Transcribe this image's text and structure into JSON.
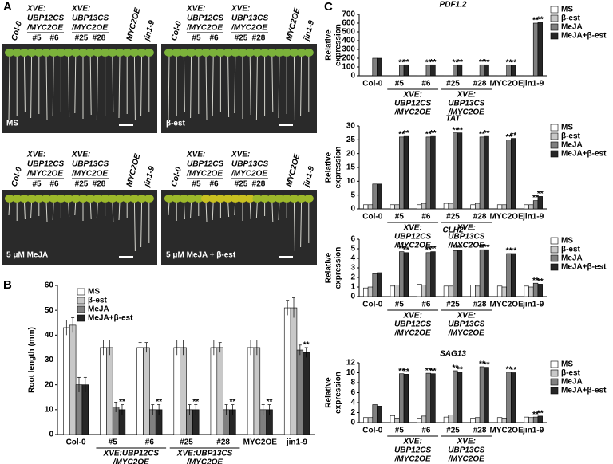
{
  "panels": [
    "A",
    "B",
    "C"
  ],
  "panel_a": {
    "conditions": [
      "MS",
      "β-est",
      "5 μM MeJA",
      "5 μM MeJA + β-est"
    ],
    "column_labels": [
      "Col-0",
      "#5",
      "#6",
      "#25",
      "#28",
      "MYC2OE",
      "jin1-9"
    ],
    "group_labels": [
      [
        "XVE:",
        "UBP12CS",
        "/MYC2OE"
      ],
      [
        "XVE:",
        "UBP13CS",
        "/MYC2OE"
      ]
    ]
  },
  "chart_data": [
    {
      "type": "bar",
      "ylabel": "Root length (mm)",
      "categories": [
        "Col-0",
        "#5",
        "#6",
        "#25",
        "#28",
        "MYC2OE",
        "jin1-9"
      ],
      "group_labels": [
        [
          "XVE:UBP12CS",
          "/MYC2OE"
        ],
        [
          "XVE:UBP13CS",
          "/MYC2OE"
        ]
      ],
      "ylim": [
        0,
        60
      ],
      "yticks": [
        0,
        10,
        20,
        30,
        40,
        50,
        60
      ],
      "series": [
        {
          "name": "MS",
          "color": "#ffffff",
          "values": [
            43,
            35,
            35,
            35,
            35,
            35,
            51
          ],
          "errors": [
            3,
            3,
            2,
            3,
            3,
            3,
            3
          ]
        },
        {
          "name": "β-est",
          "color": "#c8c8c8",
          "values": [
            44,
            35,
            35,
            35,
            35,
            35,
            51
          ],
          "errors": [
            3,
            3,
            2,
            3,
            2,
            3,
            4
          ]
        },
        {
          "name": "MeJA",
          "color": "#808080",
          "values": [
            20,
            11,
            10,
            10,
            10,
            10,
            34
          ],
          "errors": [
            3,
            2,
            2,
            2,
            2,
            2,
            2
          ]
        },
        {
          "name": "MeJA+β-est",
          "color": "#262626",
          "values": [
            20,
            10,
            10,
            10,
            10,
            10,
            33
          ],
          "errors": [
            3,
            2,
            2,
            2,
            2,
            2,
            2
          ],
          "labels": [
            null,
            "**",
            "**",
            "**",
            "**",
            "**",
            "**"
          ]
        }
      ]
    },
    {
      "type": "bar",
      "title": "PDF1.2",
      "ylabel": [
        "Relative",
        "expression"
      ],
      "categories": [
        "Col-0",
        "#5",
        "#6",
        "#25",
        "#28",
        "MYC2OE",
        "jin1-9"
      ],
      "group_labels": [
        [
          "XVE:",
          "UBP12CS",
          "/MYC2OE"
        ],
        [
          "XVE:",
          "UBP13CS",
          "/MYC2OE"
        ]
      ],
      "ylim": [
        0,
        700
      ],
      "yticks": [
        0,
        100,
        200,
        300,
        400,
        500,
        600,
        700
      ],
      "series": [
        {
          "name": "MS",
          "color": "#ffffff",
          "values": [
            1,
            1,
            1,
            1,
            1,
            1,
            1
          ]
        },
        {
          "name": "β-est",
          "color": "#c8c8c8",
          "values": [
            1,
            1,
            1,
            1,
            1,
            1,
            1
          ]
        },
        {
          "name": "MeJA",
          "color": "#808080",
          "values": [
            200,
            120,
            120,
            120,
            125,
            120,
            600
          ],
          "labels": [
            null,
            "**",
            "**",
            "**",
            "**",
            "**",
            "**"
          ]
        },
        {
          "name": "MeJA+β-est",
          "color": "#262626",
          "values": [
            200,
            125,
            125,
            125,
            125,
            120,
            610
          ],
          "labels": [
            null,
            "**",
            "**",
            "**",
            "**",
            "**",
            "**"
          ]
        }
      ]
    },
    {
      "type": "bar",
      "title": "TAT",
      "ylabel": [
        "Relative",
        "expression"
      ],
      "categories": [
        "Col-0",
        "#5",
        "#6",
        "#25",
        "#28",
        "MYC2OE",
        "jin1-9"
      ],
      "group_labels": [
        [
          "XVE:",
          "UBP12CS",
          "/MYC2OE"
        ],
        [
          "XVE:",
          "UBP13CS",
          "/MYC2OE"
        ]
      ],
      "ylim": [
        0,
        30
      ],
      "yticks": [
        0,
        5,
        10,
        15,
        20,
        25,
        30
      ],
      "series": [
        {
          "name": "MS",
          "color": "#ffffff",
          "values": [
            1.5,
            1.5,
            1.5,
            2,
            1.5,
            1.5,
            1.5
          ]
        },
        {
          "name": "β-est",
          "color": "#c8c8c8",
          "values": [
            1.5,
            1.5,
            2,
            2,
            2,
            1.5,
            1.5
          ]
        },
        {
          "name": "MeJA",
          "color": "#808080",
          "values": [
            9,
            26,
            26,
            27.5,
            26,
            25,
            3
          ],
          "labels": [
            null,
            "**",
            "**",
            "**",
            "**",
            "**",
            "**"
          ]
        },
        {
          "name": "MeJA+β-est",
          "color": "#262626",
          "values": [
            9,
            26.5,
            26.5,
            27.5,
            26.5,
            25.5,
            4.5
          ],
          "labels": [
            null,
            "**",
            "**",
            "**",
            "**",
            "**",
            "**"
          ]
        }
      ]
    },
    {
      "type": "bar",
      "title": "CLH2",
      "ylabel": [
        "Relative",
        "expression"
      ],
      "categories": [
        "Col-0",
        "#5",
        "#6",
        "#25",
        "#28",
        "MYC2OE",
        "jin1-9"
      ],
      "group_labels": [
        [
          "XVE:",
          "UBP12CS",
          "/MYC2OE"
        ],
        [
          "XVE:",
          "UBP13CS",
          "/MYC2OE"
        ]
      ],
      "ylim": [
        0,
        6
      ],
      "yticks": [
        0,
        1,
        2,
        3,
        4,
        5,
        6
      ],
      "series": [
        {
          "name": "MS",
          "color": "#ffffff",
          "values": [
            0.9,
            1.1,
            1.3,
            1.1,
            1.2,
            1.1,
            1.1
          ]
        },
        {
          "name": "β-est",
          "color": "#c8c8c8",
          "values": [
            1,
            1.2,
            1.2,
            1.1,
            1.1,
            1,
            1
          ]
        },
        {
          "name": "MeJA",
          "color": "#808080",
          "values": [
            2.4,
            4.7,
            4.6,
            4.8,
            4.9,
            4.5,
            1.4
          ],
          "labels": [
            null,
            "**",
            "**",
            "**",
            "**",
            "**",
            "**"
          ]
        },
        {
          "name": "MeJA+β-est",
          "color": "#262626",
          "values": [
            2.5,
            4.6,
            4.7,
            4.8,
            4.9,
            4.5,
            1.3
          ],
          "labels": [
            null,
            "**",
            "**",
            "**",
            "**",
            "**",
            "**"
          ]
        }
      ]
    },
    {
      "type": "bar",
      "title": "SAG13",
      "ylabel": [
        "Relative",
        "expression"
      ],
      "categories": [
        "Col-0",
        "#5",
        "#6",
        "#25",
        "#28",
        "MYC2OE",
        "jin1-9"
      ],
      "group_labels": [
        [
          "XVE:",
          "UBP12CS",
          "/MYC2OE"
        ],
        [
          "XVE:",
          "UBP13CS",
          "/MYC2OE"
        ]
      ],
      "ylim": [
        0,
        12
      ],
      "yticks": [
        0,
        2,
        4,
        6,
        8,
        10,
        12
      ],
      "series": [
        {
          "name": "MS",
          "color": "#ffffff",
          "values": [
            1,
            1.4,
            0.9,
            1.1,
            0.9,
            1,
            1.1
          ]
        },
        {
          "name": "β-est",
          "color": "#c8c8c8",
          "values": [
            1,
            0.9,
            1.3,
            1.5,
            1,
            0.9,
            1
          ]
        },
        {
          "name": "MeJA",
          "color": "#808080",
          "values": [
            3.6,
            9.8,
            9.9,
            10.4,
            11.2,
            10.1,
            1.1
          ],
          "labels": [
            null,
            "**",
            "**",
            "**",
            "**",
            "**",
            "**"
          ]
        },
        {
          "name": "MeJA+β-est",
          "color": "#262626",
          "values": [
            3.3,
            9.7,
            9.8,
            10.1,
            11.1,
            10,
            1.3
          ],
          "labels": [
            null,
            "**",
            "**",
            "**",
            "**",
            "**",
            "**"
          ]
        }
      ]
    }
  ]
}
